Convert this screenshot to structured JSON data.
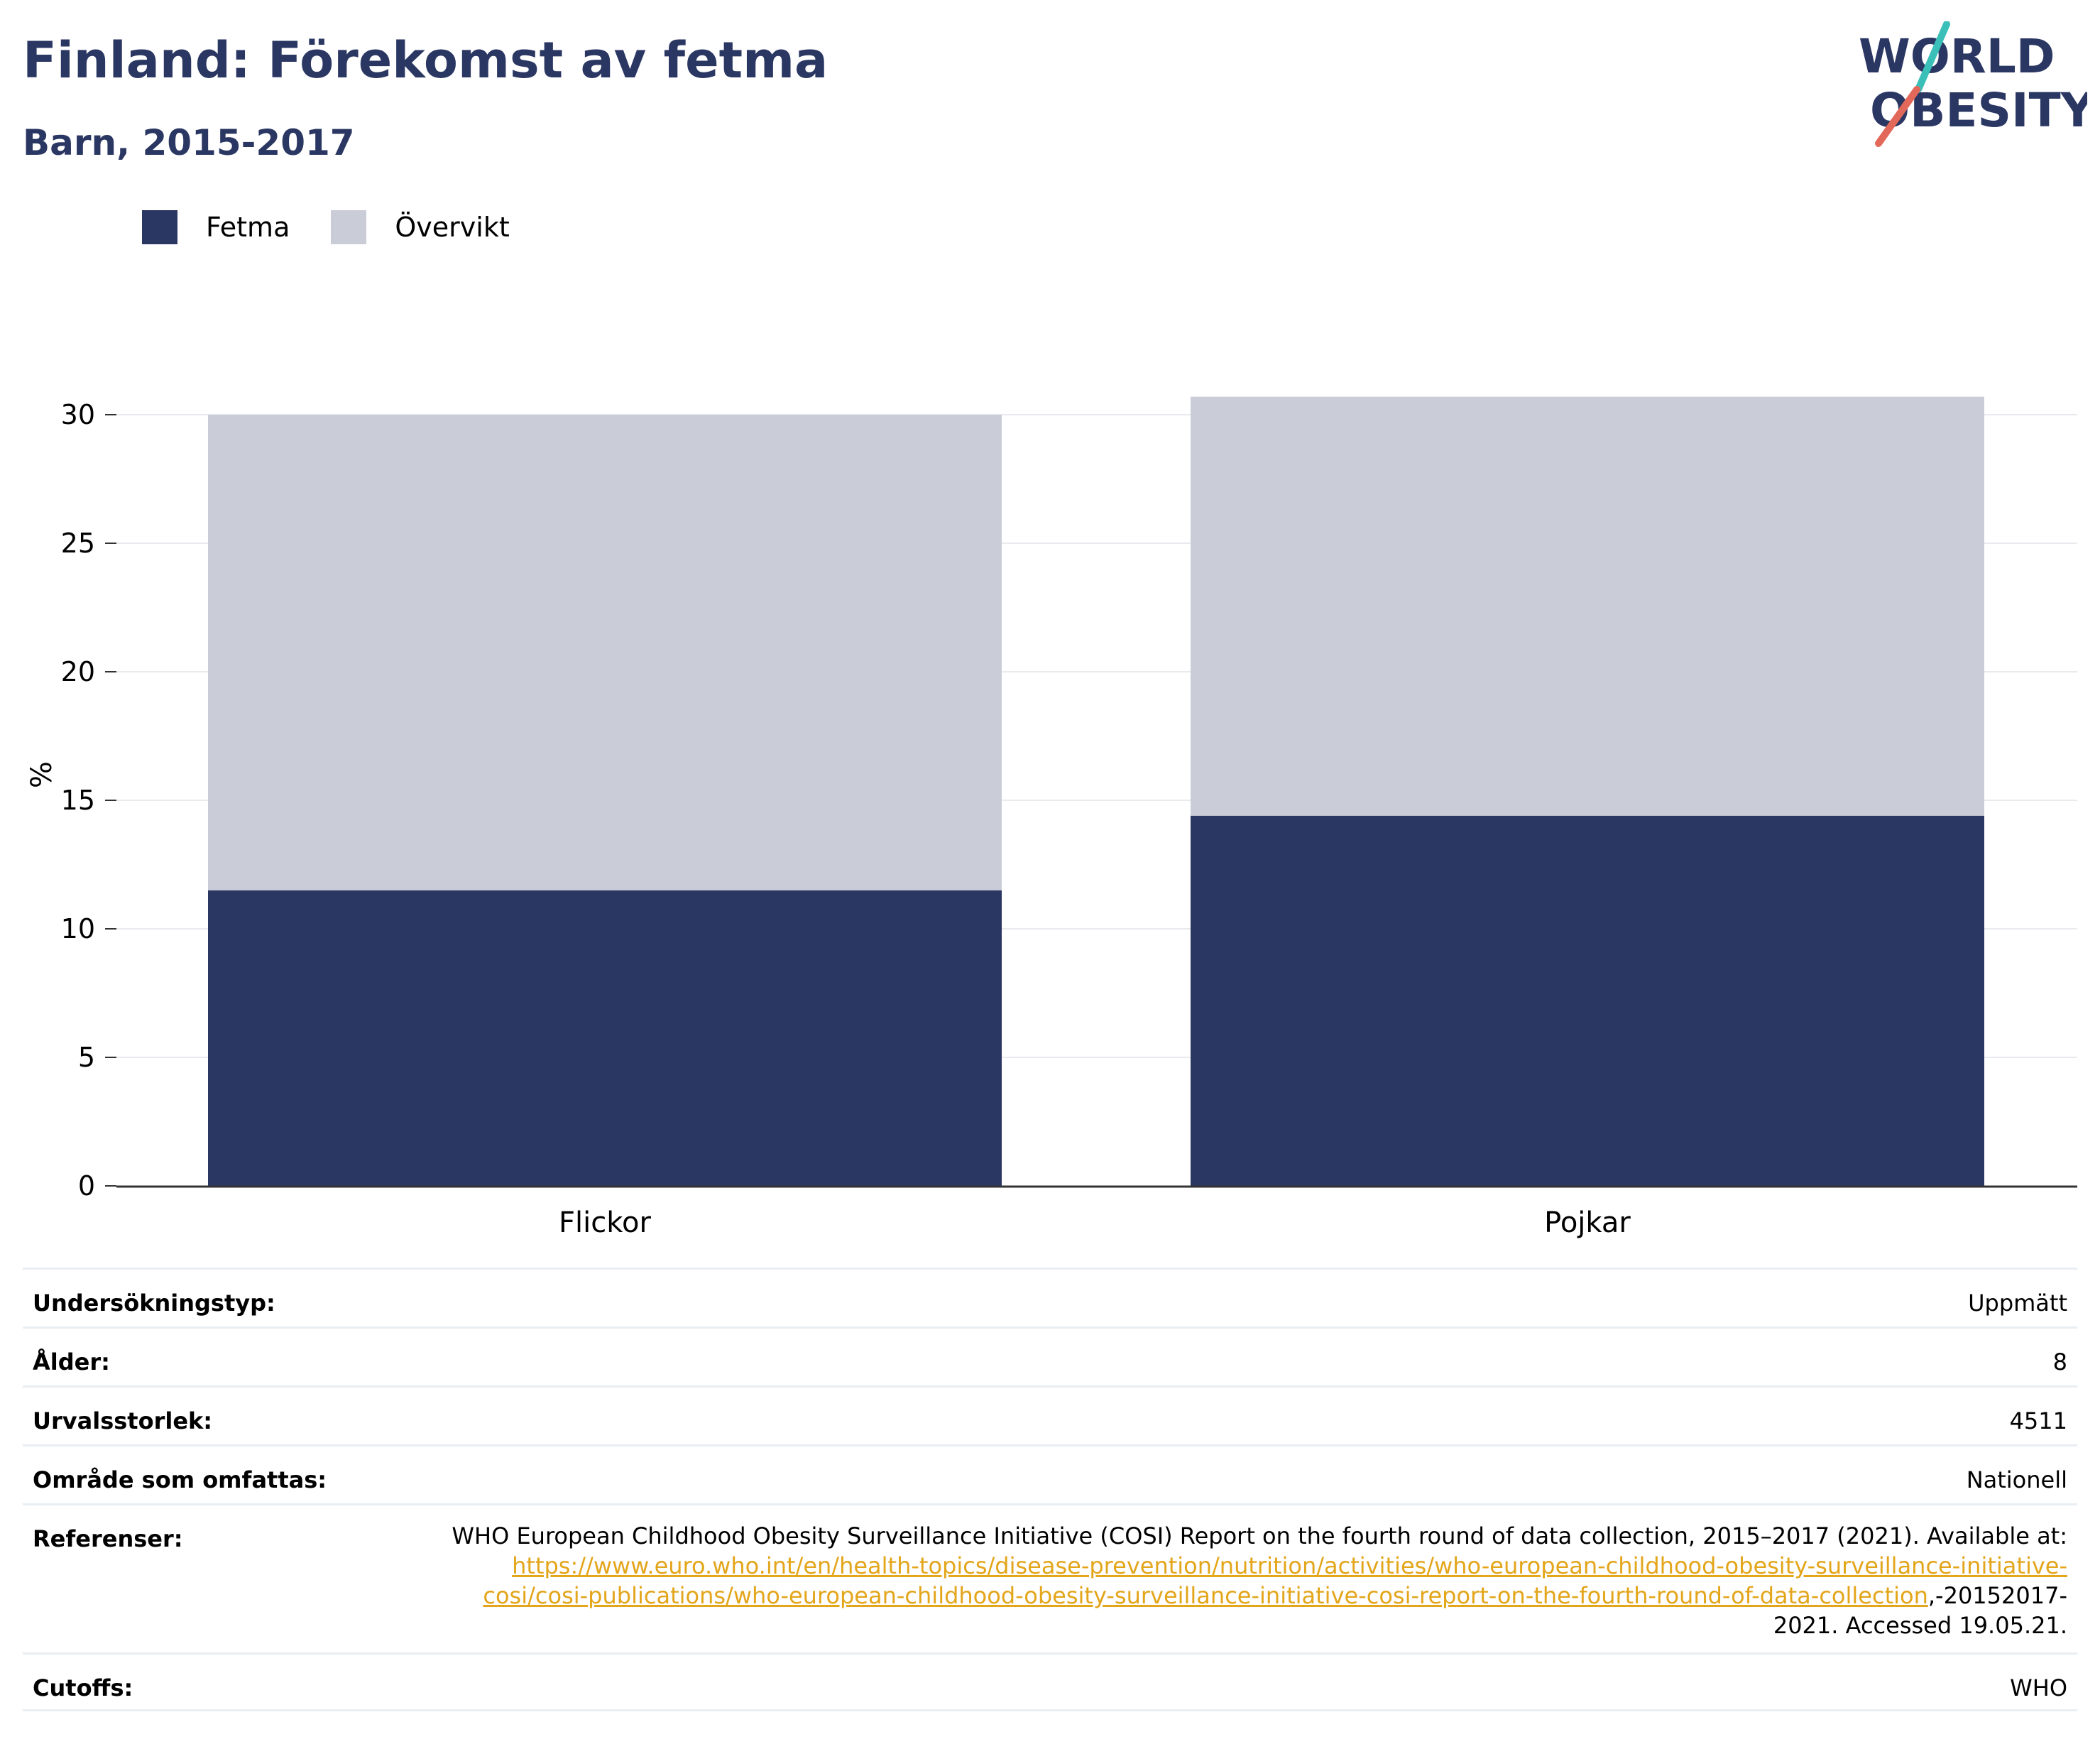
{
  "header": {
    "title": "Finland: Förekomst av fetma",
    "subtitle": "Barn, 2015-2017"
  },
  "logo": {
    "line1": "WORLD",
    "line2": "OBESITY",
    "colors": {
      "text": "#2b3763",
      "accent_teal": "#3bbfb9",
      "accent_coral": "#e2685a"
    }
  },
  "colors": {
    "fetma": "#2b3763",
    "overvikt": "#cacdd8",
    "grid": "#e8eaee",
    "axis": "#333333"
  },
  "chart_data": {
    "type": "bar",
    "stacked": true,
    "categories": [
      "Flickor",
      "Pojkar"
    ],
    "series": [
      {
        "name": "Fetma",
        "values": [
          11.5,
          14.4
        ]
      },
      {
        "name": "Övervikt",
        "values": [
          18.5,
          16.3
        ]
      }
    ],
    "ylabel": "%",
    "xlabel": "",
    "ylim": [
      0,
      30.7
    ],
    "yticks": [
      0,
      5,
      10,
      15,
      20,
      25,
      30
    ],
    "grid": true,
    "legend_position": "top-left"
  },
  "details": {
    "rows": [
      {
        "label": "Undersökningstyp:",
        "value": "Uppmätt"
      },
      {
        "label": "Ålder:",
        "value": "8"
      },
      {
        "label": "Urvalsstorlek:",
        "value": "4511"
      },
      {
        "label": "Område som omfattas:",
        "value": "Nationell"
      }
    ],
    "references": {
      "label": "Referenser:",
      "text_before": "WHO European Childhood Obesity Surveillance Initiative (COSI) Report on the fourth round of data collection, 2015–2017 (2021). Available at: ",
      "link": "https://www.euro.who.int/en/health-topics/disease-prevention/nutrition/activities/who-european-childhood-obesity-surveillance-initiative-cosi/cosi-publications/who-european-childhood-obesity-surveillance-initiative-cosi-report-on-the-fourth-round-of-data-collection",
      "text_after": ",-20152017-2021. Accessed 19.05.21."
    },
    "cutoffs": {
      "label": "Cutoffs:",
      "value": "WHO"
    }
  }
}
